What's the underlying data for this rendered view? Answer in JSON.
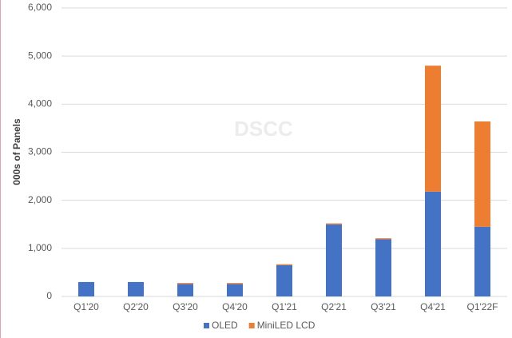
{
  "chart_data": {
    "type": "stacked-bar",
    "watermark": "DSCC",
    "y_label": "000s of Panels",
    "categories": [
      "Q1'20",
      "Q2'20",
      "Q3'20",
      "Q4'20",
      "Q1'21",
      "Q2'21",
      "Q3'21",
      "Q4'21",
      "Q1'22F"
    ],
    "series": [
      {
        "name": "OLED",
        "color": "#4472c4",
        "values": [
          300,
          300,
          260,
          260,
          650,
          1500,
          1190,
          2180,
          1450
        ]
      },
      {
        "name": "MiniLED LCD",
        "color": "#ed7d31",
        "values": [
          0,
          0,
          20,
          20,
          20,
          20,
          20,
          2620,
          2190
        ]
      }
    ],
    "ylim": [
      0,
      6000
    ],
    "yticks": [
      0,
      {
        "value": 1000,
        "label": "1,000"
      },
      {
        "value": 2000,
        "label": "2,000"
      },
      {
        "value": 3000,
        "label": "3,000"
      },
      {
        "value": 4000,
        "label": "4,000"
      },
      {
        "value": 5000,
        "label": "5,000"
      },
      {
        "value": 6000,
        "label": "6,000"
      }
    ],
    "grid": true,
    "legend": "bottom"
  }
}
